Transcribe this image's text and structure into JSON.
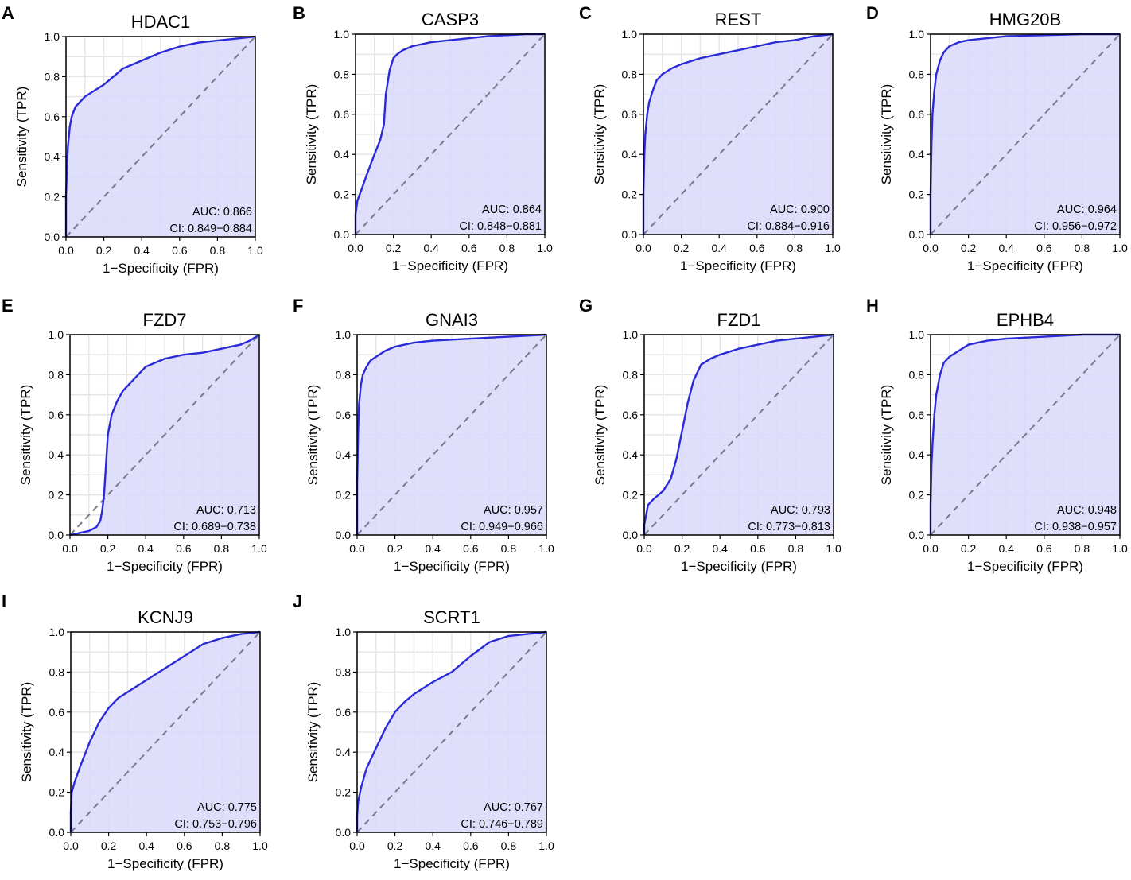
{
  "colors": {
    "curve": "#2a2ad6",
    "fill": "#d9d9fb",
    "diagonal": "#7a7a8a",
    "grid": "#e6e6e6"
  },
  "chart_data": [
    {
      "type": "line",
      "panel": "A",
      "title": "HDAC1",
      "xlabel": "1−Specificity (FPR)",
      "ylabel": "Sensitivity (TPR)",
      "xlim": [
        0,
        1
      ],
      "ylim": [
        0,
        1
      ],
      "xticks": [
        "0.0",
        "0.2",
        "0.4",
        "0.6",
        "0.8",
        "1.0"
      ],
      "yticks": [
        "0.0",
        "0.2",
        "0.4",
        "0.6",
        "0.8",
        "1.0"
      ],
      "auc_text": "AUC: 0.866",
      "ci_text": "CI: 0.849−0.884",
      "x": [
        0,
        0,
        0.005,
        0.01,
        0.02,
        0.03,
        0.05,
        0.08,
        0.1,
        0.15,
        0.2,
        0.25,
        0.3,
        0.35,
        0.4,
        0.5,
        0.6,
        0.7,
        0.8,
        0.9,
        1.0
      ],
      "y": [
        0,
        0.2,
        0.35,
        0.45,
        0.55,
        0.6,
        0.65,
        0.68,
        0.7,
        0.73,
        0.76,
        0.8,
        0.84,
        0.86,
        0.88,
        0.92,
        0.95,
        0.97,
        0.98,
        0.99,
        1.0
      ]
    },
    {
      "type": "line",
      "panel": "B",
      "title": "CASP3",
      "xlabel": "1−Specificity (FPR)",
      "ylabel": "Sensitivity (TPR)",
      "xlim": [
        0,
        1
      ],
      "ylim": [
        0,
        1
      ],
      "xticks": [
        "0.0",
        "0.2",
        "0.4",
        "0.6",
        "0.8",
        "1.0"
      ],
      "yticks": [
        "0.0",
        "0.2",
        "0.4",
        "0.6",
        "0.8",
        "1.0"
      ],
      "auc_text": "AUC: 0.864",
      "ci_text": "CI: 0.848−0.881",
      "x": [
        0,
        0,
        0.01,
        0.03,
        0.06,
        0.1,
        0.13,
        0.15,
        0.16,
        0.18,
        0.2,
        0.22,
        0.25,
        0.3,
        0.4,
        0.5,
        0.6,
        0.7,
        0.8,
        0.9,
        1.0
      ],
      "y": [
        0,
        0.1,
        0.17,
        0.22,
        0.3,
        0.4,
        0.47,
        0.55,
        0.7,
        0.82,
        0.88,
        0.9,
        0.92,
        0.94,
        0.96,
        0.97,
        0.98,
        0.99,
        0.995,
        1.0,
        1.0
      ]
    },
    {
      "type": "line",
      "panel": "C",
      "title": "REST",
      "xlabel": "1−Specificity (FPR)",
      "ylabel": "Sensitivity (TPR)",
      "xlim": [
        0,
        1
      ],
      "ylim": [
        0,
        1
      ],
      "xticks": [
        "0.0",
        "0.2",
        "0.4",
        "0.6",
        "0.8",
        "1.0"
      ],
      "yticks": [
        "0.0",
        "0.2",
        "0.4",
        "0.6",
        "0.8",
        "1.0"
      ],
      "auc_text": "AUC: 0.900",
      "ci_text": "CI: 0.884−0.916",
      "x": [
        0,
        0,
        0.005,
        0.01,
        0.02,
        0.03,
        0.05,
        0.07,
        0.1,
        0.15,
        0.2,
        0.3,
        0.4,
        0.5,
        0.6,
        0.7,
        0.8,
        0.9,
        1.0
      ],
      "y": [
        0,
        0.2,
        0.4,
        0.5,
        0.6,
        0.66,
        0.72,
        0.77,
        0.8,
        0.83,
        0.85,
        0.88,
        0.9,
        0.92,
        0.94,
        0.96,
        0.97,
        0.99,
        1.0
      ]
    },
    {
      "type": "line",
      "panel": "D",
      "title": "HMG20B",
      "xlabel": "1−Specificity (FPR)",
      "ylabel": "Sensitivity (TPR)",
      "xlim": [
        0,
        1
      ],
      "ylim": [
        0,
        1
      ],
      "xticks": [
        "0.0",
        "0.2",
        "0.4",
        "0.6",
        "0.8",
        "1.0"
      ],
      "yticks": [
        "0.0",
        "0.2",
        "0.4",
        "0.6",
        "0.8",
        "1.0"
      ],
      "auc_text": "AUC: 0.964",
      "ci_text": "CI: 0.956−0.972",
      "x": [
        0,
        0,
        0.005,
        0.01,
        0.02,
        0.03,
        0.05,
        0.07,
        0.1,
        0.15,
        0.2,
        0.3,
        0.4,
        0.6,
        0.8,
        1.0
      ],
      "y": [
        0,
        0.2,
        0.45,
        0.6,
        0.72,
        0.8,
        0.87,
        0.91,
        0.94,
        0.96,
        0.97,
        0.98,
        0.99,
        0.995,
        1.0,
        1.0
      ]
    },
    {
      "type": "line",
      "panel": "E",
      "title": "FZD7",
      "xlabel": "1−Specificity (FPR)",
      "ylabel": "Sensitivity (TPR)",
      "xlim": [
        0,
        1
      ],
      "ylim": [
        0,
        1
      ],
      "xticks": [
        "0.0",
        "0.2",
        "0.4",
        "0.6",
        "0.8",
        "1.0"
      ],
      "yticks": [
        "0.0",
        "0.2",
        "0.4",
        "0.6",
        "0.8",
        "1.0"
      ],
      "auc_text": "AUC: 0.713",
      "ci_text": "CI: 0.689−0.738",
      "x": [
        0,
        0.05,
        0.1,
        0.14,
        0.16,
        0.17,
        0.18,
        0.19,
        0.2,
        0.22,
        0.25,
        0.28,
        0.32,
        0.36,
        0.4,
        0.5,
        0.6,
        0.7,
        0.8,
        0.9,
        0.95,
        1.0
      ],
      "y": [
        0,
        0.01,
        0.02,
        0.04,
        0.07,
        0.12,
        0.2,
        0.35,
        0.5,
        0.6,
        0.67,
        0.72,
        0.76,
        0.8,
        0.84,
        0.88,
        0.9,
        0.91,
        0.93,
        0.95,
        0.97,
        1.0
      ]
    },
    {
      "type": "line",
      "panel": "F",
      "title": "GNAI3",
      "xlabel": "1−Specificity (FPR)",
      "ylabel": "Sensitivity (TPR)",
      "xlim": [
        0,
        1
      ],
      "ylim": [
        0,
        1
      ],
      "xticks": [
        "0.0",
        "0.2",
        "0.4",
        "0.6",
        "0.8",
        "1.0"
      ],
      "yticks": [
        "0.0",
        "0.2",
        "0.4",
        "0.6",
        "0.8",
        "1.0"
      ],
      "auc_text": "AUC: 0.957",
      "ci_text": "CI: 0.949−0.966",
      "x": [
        0,
        0,
        0.005,
        0.01,
        0.02,
        0.03,
        0.05,
        0.07,
        0.1,
        0.15,
        0.2,
        0.3,
        0.4,
        0.6,
        0.8,
        1.0
      ],
      "y": [
        0,
        0.25,
        0.5,
        0.65,
        0.75,
        0.8,
        0.84,
        0.87,
        0.89,
        0.92,
        0.94,
        0.96,
        0.97,
        0.98,
        0.99,
        1.0
      ]
    },
    {
      "type": "line",
      "panel": "G",
      "title": "FZD1",
      "xlabel": "1−Specificity (FPR)",
      "ylabel": "Sensitivity (TPR)",
      "xlim": [
        0,
        1
      ],
      "ylim": [
        0,
        1
      ],
      "xticks": [
        "0.0",
        "0.2",
        "0.4",
        "0.6",
        "0.8",
        "1.0"
      ],
      "yticks": [
        "0.0",
        "0.2",
        "0.4",
        "0.6",
        "0.8",
        "1.0"
      ],
      "auc_text": "AUC: 0.793",
      "ci_text": "CI: 0.773−0.813",
      "x": [
        0,
        0,
        0.01,
        0.02,
        0.05,
        0.1,
        0.14,
        0.17,
        0.2,
        0.23,
        0.26,
        0.3,
        0.35,
        0.4,
        0.5,
        0.6,
        0.7,
        0.8,
        0.9,
        1.0
      ],
      "y": [
        0,
        0.05,
        0.1,
        0.15,
        0.18,
        0.22,
        0.28,
        0.38,
        0.52,
        0.66,
        0.77,
        0.85,
        0.88,
        0.9,
        0.93,
        0.95,
        0.97,
        0.98,
        0.99,
        1.0
      ]
    },
    {
      "type": "line",
      "panel": "H",
      "title": "EPHB4",
      "xlabel": "1−Specificity (FPR)",
      "ylabel": "Sensitivity (TPR)",
      "xlim": [
        0,
        1
      ],
      "ylim": [
        0,
        1
      ],
      "xticks": [
        "0.0",
        "0.2",
        "0.4",
        "0.6",
        "0.8",
        "1.0"
      ],
      "yticks": [
        "0.0",
        "0.2",
        "0.4",
        "0.6",
        "0.8",
        "1.0"
      ],
      "auc_text": "AUC: 0.948",
      "ci_text": "CI: 0.938−0.957",
      "x": [
        0,
        0,
        0.005,
        0.01,
        0.02,
        0.03,
        0.05,
        0.07,
        0.1,
        0.15,
        0.2,
        0.3,
        0.4,
        0.6,
        0.8,
        1.0
      ],
      "y": [
        0,
        0.15,
        0.35,
        0.45,
        0.6,
        0.7,
        0.8,
        0.86,
        0.89,
        0.92,
        0.95,
        0.97,
        0.98,
        0.99,
        1.0,
        1.0
      ]
    },
    {
      "type": "line",
      "panel": "I",
      "title": "KCNJ9",
      "xlabel": "1−Specificity (FPR)",
      "ylabel": "Sensitivity (TPR)",
      "xlim": [
        0,
        1
      ],
      "ylim": [
        0,
        1
      ],
      "xticks": [
        "0.0",
        "0.2",
        "0.4",
        "0.6",
        "0.8",
        "1.0"
      ],
      "yticks": [
        "0.0",
        "0.2",
        "0.4",
        "0.6",
        "0.8",
        "1.0"
      ],
      "auc_text": "AUC: 0.775",
      "ci_text": "CI: 0.753−0.796",
      "x": [
        0,
        0,
        0.005,
        0.02,
        0.05,
        0.1,
        0.15,
        0.2,
        0.25,
        0.3,
        0.4,
        0.5,
        0.6,
        0.7,
        0.8,
        0.9,
        1.0
      ],
      "y": [
        0,
        0.1,
        0.2,
        0.25,
        0.33,
        0.45,
        0.55,
        0.62,
        0.67,
        0.7,
        0.76,
        0.82,
        0.88,
        0.94,
        0.97,
        0.99,
        1.0
      ]
    },
    {
      "type": "line",
      "panel": "J",
      "title": "SCRT1",
      "xlabel": "1−Specificity (FPR)",
      "ylabel": "Sensitivity (TPR)",
      "xlim": [
        0,
        1
      ],
      "ylim": [
        0,
        1
      ],
      "xticks": [
        "0.0",
        "0.2",
        "0.4",
        "0.6",
        "0.8",
        "1.0"
      ],
      "yticks": [
        "0.0",
        "0.2",
        "0.4",
        "0.6",
        "0.8",
        "1.0"
      ],
      "auc_text": "AUC: 0.767",
      "ci_text": "CI: 0.746−0.789",
      "x": [
        0,
        0,
        0.005,
        0.02,
        0.05,
        0.1,
        0.15,
        0.2,
        0.25,
        0.3,
        0.4,
        0.5,
        0.6,
        0.7,
        0.8,
        0.9,
        1.0
      ],
      "y": [
        0,
        0.08,
        0.15,
        0.22,
        0.32,
        0.42,
        0.52,
        0.6,
        0.65,
        0.69,
        0.75,
        0.8,
        0.88,
        0.95,
        0.98,
        0.99,
        1.0
      ]
    }
  ]
}
